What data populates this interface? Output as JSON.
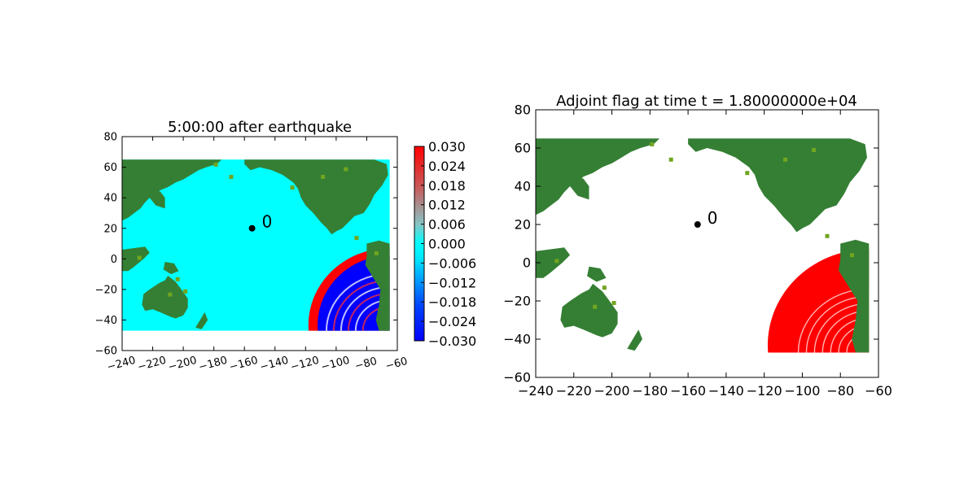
{
  "chart_data": [
    {
      "type": "heatmap",
      "title": "5:00:00 after earthquake",
      "xlim": [
        -240,
        -60
      ],
      "ylim": [
        -60,
        80
      ],
      "xticks": [
        -240,
        -220,
        -200,
        -180,
        -160,
        -140,
        -120,
        -100,
        -80,
        -60
      ],
      "yticks": [
        -60,
        -40,
        -20,
        0,
        20,
        40,
        60,
        80
      ],
      "xtick_rotation_deg": 15,
      "data_extent": {
        "x": [
          -240,
          -65
        ],
        "y": [
          -47,
          65
        ]
      },
      "colorbar": {
        "ticks": [
          "0.030",
          "0.024",
          "0.018",
          "0.012",
          "0.006",
          "0.000",
          "−0.006",
          "−0.012",
          "−0.018",
          "−0.024",
          "−0.030"
        ],
        "range": [
          -0.03,
          0.03
        ],
        "colors": [
          "#0000ff",
          "#00ffff",
          "#ff0000"
        ]
      },
      "marker": {
        "x": -155,
        "y": 20,
        "label": "0"
      },
      "grid": false
    },
    {
      "type": "heatmap",
      "title": "Adjoint flag at time t = 1.80000000e+04",
      "xlim": [
        -240,
        -60
      ],
      "ylim": [
        -60,
        80
      ],
      "xticks": [
        -240,
        -220,
        -200,
        -180,
        -160,
        -140,
        -120,
        -100,
        -80,
        -60
      ],
      "yticks": [
        -60,
        -40,
        -20,
        0,
        20,
        40,
        60,
        80
      ],
      "data_extent": {
        "x": [
          -240,
          -65
        ],
        "y": [
          -47,
          65
        ]
      },
      "marker": {
        "x": -155,
        "y": 20,
        "label": "0"
      },
      "grid": false
    }
  ],
  "colors": {
    "land": "#357f34",
    "land_light": "#71a51f",
    "ocean_rest": "#00ffff",
    "ocean_blank": "#ffffff",
    "wave_pos": "#ff0000",
    "wave_neg": "#0000ff",
    "flag": "#ff0000"
  }
}
